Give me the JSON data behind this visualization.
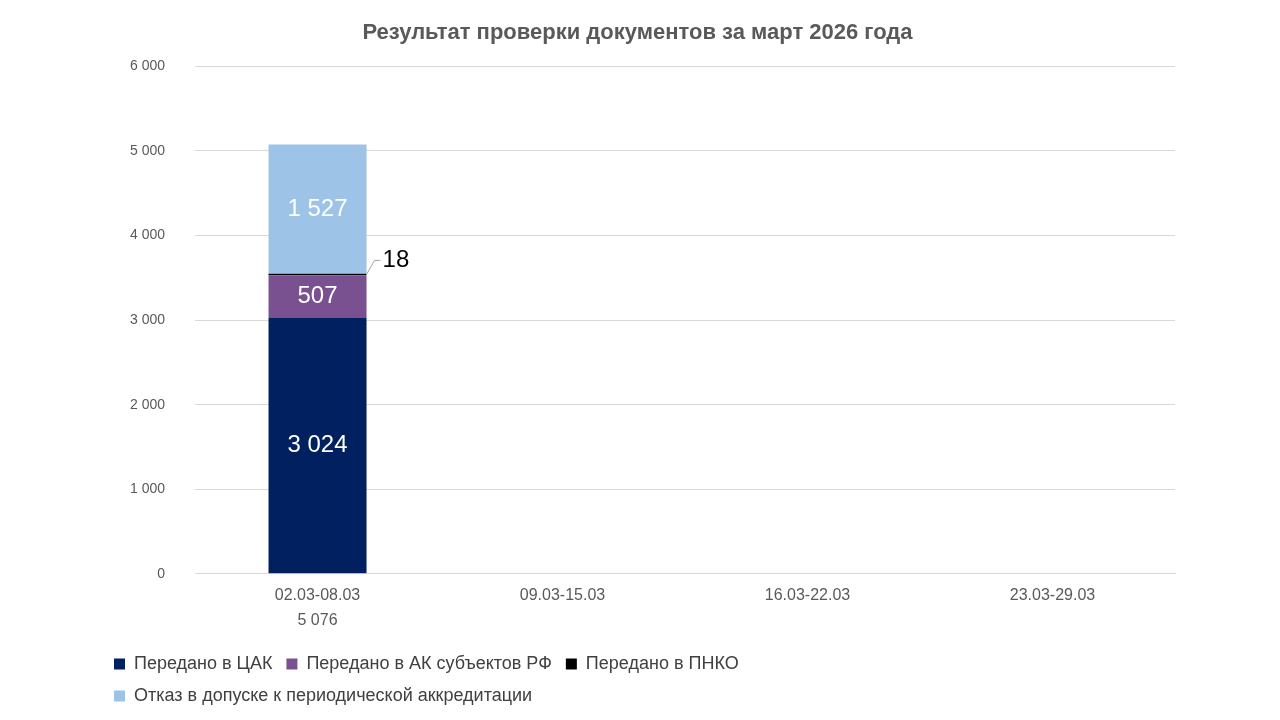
{
  "chart_data": {
    "type": "bar",
    "title": "Результат проверки документов за март 2026 года",
    "categories": [
      "02.03-08.03",
      "09.03-15.03",
      "16.03-22.03",
      "23.03-29.03"
    ],
    "stacked": true,
    "series": [
      {
        "name": "Передано в ЦАК",
        "color": "#002060",
        "values": [
          3024,
          null,
          null,
          null
        ],
        "value_labels": [
          "3 024",
          null,
          null,
          null
        ]
      },
      {
        "name": "Передано в АК субъектов РФ",
        "color": "#7a5190",
        "values": [
          507,
          null,
          null,
          null
        ],
        "value_labels": [
          "507",
          null,
          null,
          null
        ]
      },
      {
        "name": "Передано в ПНКО",
        "color": "#000000",
        "values": [
          18,
          null,
          null,
          null
        ],
        "value_labels": [
          "18",
          null,
          null,
          null
        ]
      },
      {
        "name": "Отказ в допуске к периодической аккредитации",
        "color": "#9dc3e6",
        "values": [
          1527,
          null,
          null,
          null
        ],
        "value_labels": [
          "1 527",
          null,
          null,
          null
        ]
      }
    ],
    "totals": [
      "5 076",
      null,
      null,
      null
    ],
    "ylim": [
      0,
      6000
    ],
    "yticks": [
      {
        "value": 0,
        "label": "0"
      },
      {
        "value": 1000,
        "label": "1 000"
      },
      {
        "value": 2000,
        "label": "2 000"
      },
      {
        "value": 3000,
        "label": "3 000"
      },
      {
        "value": 4000,
        "label": "4 000"
      },
      {
        "value": 5000,
        "label": "5 000"
      },
      {
        "value": 6000,
        "label": "6 000"
      }
    ],
    "grid": "y",
    "legend": "bottom"
  }
}
